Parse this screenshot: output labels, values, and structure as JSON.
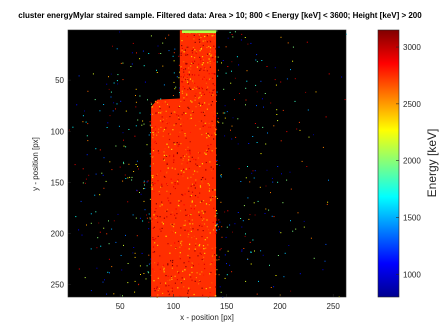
{
  "chart_data": {
    "type": "heatmap",
    "title": "cluster energyMylar staired sample. Filtered data: Area > 10; 800 < Energy [keV] < 3600;  Height [keV] > 200",
    "xlabel": "x - position [px]",
    "ylabel": "y - position [px]",
    "colorbar_label": "Energy [keV]",
    "xlim": [
      1,
      262
    ],
    "ylim": [
      1,
      262
    ],
    "y_reversed": true,
    "xticks": [
      50,
      100,
      150,
      200,
      250
    ],
    "yticks": [
      50,
      100,
      150,
      200,
      250
    ],
    "colorbar_range": [
      800,
      3150
    ],
    "colorbar_ticks": [
      1000,
      1500,
      2000,
      2500,
      3000
    ],
    "colormap": "jet",
    "background_color": "#000000",
    "dominant_value_keV": 2750,
    "bright_region": {
      "x_range_lower": [
        79,
        140
      ],
      "x_range_upper": [
        106,
        140
      ],
      "step_y": 68,
      "y_range": [
        1,
        262
      ],
      "mean_energy_keV": 2750
    },
    "top_strip": {
      "x_range": [
        108,
        140
      ],
      "y_range": [
        1,
        4
      ],
      "energy_keV": 2100
    }
  }
}
